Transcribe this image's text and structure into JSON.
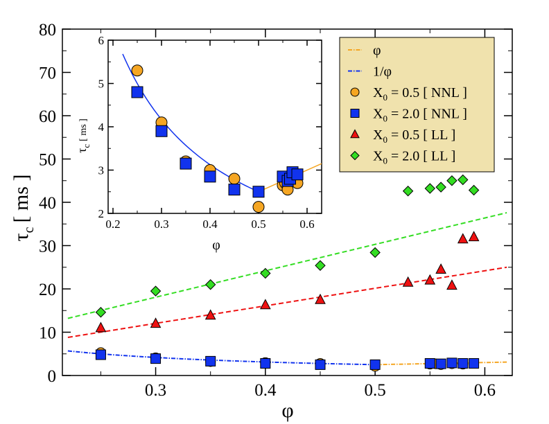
{
  "chart_data": [
    {
      "type": "scatter",
      "name": "main",
      "xlabel": "φ",
      "ylabel_symbol": "τ",
      "ylabel_sub": "c",
      "ylabel_unit": "[ ms ]",
      "xlim": [
        0.215,
        0.625
      ],
      "ylim": [
        0,
        80
      ],
      "xticks": [
        0.3,
        0.4,
        0.5,
        0.6
      ],
      "xtick_labels": [
        "0.3",
        "0.4",
        "0.5",
        "0.6"
      ],
      "yticks": [
        0,
        10,
        20,
        30,
        40,
        50,
        60,
        70,
        80
      ],
      "ytick_labels": [
        "0",
        "10",
        "20",
        "30",
        "40",
        "50",
        "60",
        "70",
        "80"
      ],
      "series": [
        {
          "name": "X0 = 0.5 [ NNL ]",
          "marker": "circle",
          "color": "#f5a623",
          "x": [
            0.25,
            0.3,
            0.35,
            0.4,
            0.45,
            0.5,
            0.55,
            0.555,
            0.56,
            0.57,
            0.58
          ],
          "y": [
            5.3,
            4.1,
            3.2,
            3.0,
            2.8,
            2.1,
            2.6,
            2.7,
            2.5,
            2.7,
            2.6
          ]
        },
        {
          "name": "X0 = 2.0 [ NNL ]",
          "marker": "square",
          "color": "#1133ee",
          "x": [
            0.25,
            0.3,
            0.35,
            0.4,
            0.45,
            0.5,
            0.55,
            0.56,
            0.57,
            0.58,
            0.59
          ],
          "y": [
            4.8,
            3.9,
            3.3,
            2.8,
            2.5,
            2.5,
            2.8,
            2.7,
            2.9,
            2.8,
            2.8
          ]
        },
        {
          "name": "X0 = 0.5 [ LL ]",
          "marker": "triangle",
          "color": "#ee1111",
          "x": [
            0.25,
            0.3,
            0.35,
            0.4,
            0.45,
            0.53,
            0.55,
            0.56,
            0.57,
            0.58,
            0.59
          ],
          "y": [
            11.0,
            12.0,
            13.9,
            16.3,
            17.5,
            21.5,
            22.0,
            24.5,
            20.8,
            31.5,
            32.0
          ]
        },
        {
          "name": "X0 = 2.0 [ LL ]",
          "marker": "diamond",
          "color": "#33dd22",
          "x": [
            0.25,
            0.3,
            0.35,
            0.4,
            0.45,
            0.5,
            0.53,
            0.55,
            0.56,
            0.57,
            0.58,
            0.59
          ],
          "y": [
            14.6,
            19.5,
            21.0,
            23.6,
            25.4,
            28.4,
            42.6,
            43.2,
            43.5,
            45.0,
            45.2,
            42.8
          ]
        }
      ],
      "lines": [
        {
          "name": "φ",
          "color": "#f5a623",
          "style": "dashdot",
          "x": [
            0.5,
            0.62
          ],
          "y": [
            2.5,
            3.1
          ]
        },
        {
          "name": "1/φ",
          "color": "#1133ee",
          "style": "dashdot",
          "x_range": [
            0.22,
            0.5
          ],
          "formula": "1.25/x"
        },
        {
          "name": "fit X0 = 0.5 [ LL ]",
          "color": "#ee1111",
          "style": "dashed",
          "x": [
            0.22,
            0.62
          ],
          "y": [
            8.8,
            25.0
          ]
        },
        {
          "name": "fit X0 = 2.0 [ LL ]",
          "color": "#33dd22",
          "style": "dashed",
          "x": [
            0.22,
            0.62
          ],
          "y": [
            13.2,
            37.6
          ]
        }
      ],
      "legend": {
        "position": "top-right",
        "background": "#f0e2ad",
        "entries": [
          {
            "label": "φ",
            "symbol": "line",
            "color": "#f5a623"
          },
          {
            "label": "1/φ",
            "symbol": "line",
            "color": "#1133ee"
          },
          {
            "label_main": "X",
            "label_sub": "0",
            "label_rest": " = 0.5 [ NNL ]",
            "symbol": "circle",
            "color": "#f5a623"
          },
          {
            "label_main": "X",
            "label_sub": "0",
            "label_rest": " = 2.0 [ NNL ]",
            "symbol": "square",
            "color": "#1133ee"
          },
          {
            "label_main": "X",
            "label_sub": "0",
            "label_rest": " = 0.5 [ LL ]",
            "symbol": "triangle",
            "color": "#ee1111"
          },
          {
            "label_main": "X",
            "label_sub": "0",
            "label_rest": " = 2.0 [ LL ]",
            "symbol": "diamond",
            "color": "#33dd22"
          }
        ]
      }
    },
    {
      "type": "scatter",
      "name": "inset",
      "xlabel": "φ",
      "ylabel_symbol": "τ",
      "ylabel_sub": "c",
      "ylabel_unit": "[ ms ]",
      "xlim": [
        0.19,
        0.63
      ],
      "ylim": [
        2,
        6
      ],
      "xticks": [
        0.2,
        0.3,
        0.4,
        0.5,
        0.6
      ],
      "xtick_labels": [
        "0.2",
        "0.3",
        "0.4",
        "0.5",
        "0.6"
      ],
      "yticks": [
        2,
        3,
        4,
        5,
        6
      ],
      "ytick_labels": [
        "2",
        "3",
        "4",
        "5",
        "6"
      ],
      "series": [
        {
          "name": "X0 = 0.5 [ NNL ]",
          "marker": "circle",
          "color": "#f5a623",
          "x": [
            0.25,
            0.3,
            0.35,
            0.4,
            0.45,
            0.5,
            0.55,
            0.555,
            0.56,
            0.57,
            0.58
          ],
          "y": [
            5.3,
            4.1,
            3.2,
            3.0,
            2.8,
            2.15,
            2.65,
            2.7,
            2.55,
            2.75,
            2.7
          ]
        },
        {
          "name": "X0 = 2.0 [ NNL ]",
          "marker": "square",
          "color": "#1133ee",
          "x": [
            0.25,
            0.3,
            0.35,
            0.4,
            0.45,
            0.5,
            0.55,
            0.56,
            0.565,
            0.57,
            0.58
          ],
          "y": [
            4.8,
            3.9,
            3.15,
            2.85,
            2.55,
            2.5,
            2.85,
            2.75,
            2.8,
            2.95,
            2.9
          ]
        }
      ],
      "lines": [
        {
          "name": "1/φ",
          "color": "#1133ee",
          "style": "solid",
          "x_range": [
            0.22,
            0.5
          ],
          "formula": "1.25/x"
        },
        {
          "name": "φ",
          "color": "#f5a623",
          "style": "solid",
          "x": [
            0.5,
            0.63
          ],
          "y": [
            2.5,
            3.15
          ]
        }
      ]
    }
  ]
}
